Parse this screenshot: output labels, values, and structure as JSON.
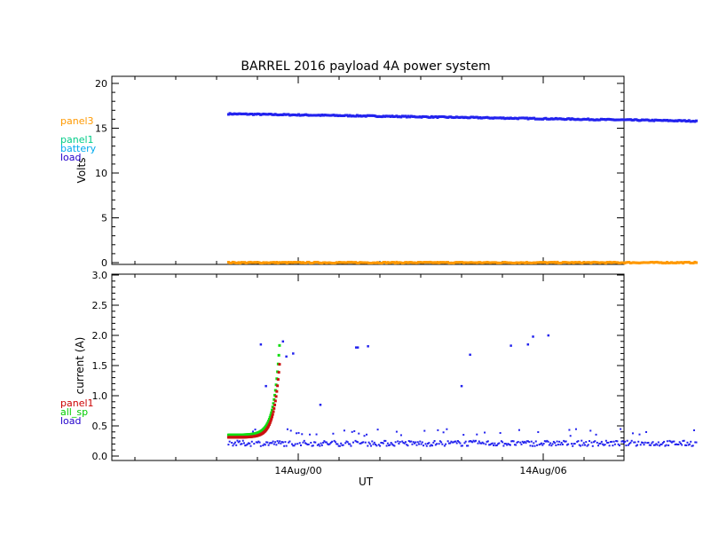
{
  "chart_data": [
    {
      "type": "scatter",
      "title": "BARREL 2016 payload 4A power system",
      "ylabel": "Volts",
      "ylim": [
        0,
        20
      ],
      "yticks": [
        "0",
        "5",
        "10",
        "15",
        "20"
      ],
      "legend": [
        {
          "name": "panel3",
          "color": "#ff9900"
        },
        {
          "name": "panel1",
          "color": "#00cc88"
        },
        {
          "name": "battery",
          "color": "#00aaee"
        },
        {
          "name": "load",
          "color": "#2200cc"
        }
      ],
      "series": [
        {
          "name": "load",
          "color": "#2222ee",
          "x_start_hours": -41,
          "x_end_hours": 234,
          "y_start": 16.6,
          "y_end": 15.8
        },
        {
          "name": "panel3",
          "color": "#ff9900",
          "x_start_hours": -41,
          "x_end_hours": 234,
          "y_start": 0.0,
          "y_end": 0.0
        }
      ]
    },
    {
      "type": "scatter",
      "xlabel": "UT",
      "ylabel": "current (A)",
      "ylim": [
        0,
        3.0
      ],
      "yticks": [
        "0.0",
        "0.5",
        "1.0",
        "1.5",
        "2.0",
        "2.5",
        "3.0"
      ],
      "xticks": [
        {
          "label": "14Aug/00",
          "hours": 0
        },
        {
          "label": "14Aug/06",
          "hours": 144
        }
      ],
      "legend": [
        {
          "name": "panel1",
          "color": "#cc0000"
        },
        {
          "name": "all_sp",
          "color": "#00cc00"
        },
        {
          "name": "load",
          "color": "#2200cc"
        }
      ],
      "series": [
        {
          "name": "load",
          "color": "#2222ee",
          "baseline": 0.21
        },
        {
          "name": "all_sp",
          "color": "#11dd11"
        },
        {
          "name": "panel1",
          "color": "#cc1111"
        }
      ],
      "load_outliers": [
        [
          -22,
          1.85
        ],
        [
          -19,
          1.16
        ],
        [
          -9,
          1.9
        ],
        [
          -7,
          1.65
        ],
        [
          -3,
          1.7
        ],
        [
          13,
          0.85
        ],
        [
          34,
          1.8
        ],
        [
          35,
          1.8
        ],
        [
          41,
          1.82
        ],
        [
          96,
          1.16
        ],
        [
          101,
          1.68
        ],
        [
          125,
          1.83
        ],
        [
          135,
          1.85
        ],
        [
          138,
          1.98
        ],
        [
          147,
          2.0
        ]
      ]
    }
  ]
}
